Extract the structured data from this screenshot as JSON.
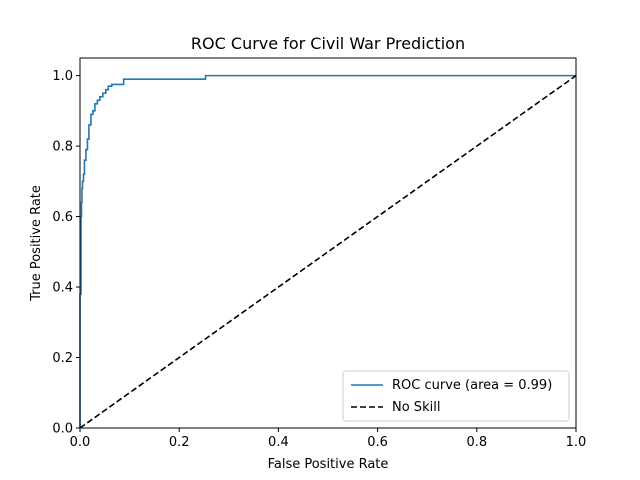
{
  "chart_data": {
    "type": "line",
    "title": "ROC Curve for Civil War Prediction",
    "xlabel": "False Positive Rate",
    "ylabel": "True Positive Rate",
    "xlim": [
      0.0,
      1.0
    ],
    "ylim": [
      0.0,
      1.05
    ],
    "x_ticks": [
      0.0,
      0.2,
      0.4,
      0.6,
      0.8,
      1.0
    ],
    "y_ticks": [
      0.0,
      0.2,
      0.4,
      0.6,
      0.8,
      1.0
    ],
    "x_tick_labels": [
      "0.0",
      "0.2",
      "0.4",
      "0.6",
      "0.8",
      "1.0"
    ],
    "y_tick_labels": [
      "0.0",
      "0.2",
      "0.4",
      "0.6",
      "0.8",
      "1.0"
    ],
    "grid": false,
    "legend_position": "lower-right",
    "series": [
      {
        "name": "ROC curve (area = 0.99)",
        "color": "#1f77b4",
        "style": "solid",
        "x": [
          0.0,
          0.0,
          0.002,
          0.002,
          0.003,
          0.003,
          0.004,
          0.004,
          0.005,
          0.005,
          0.007,
          0.007,
          0.009,
          0.009,
          0.012,
          0.012,
          0.015,
          0.015,
          0.018,
          0.018,
          0.022,
          0.022,
          0.026,
          0.026,
          0.03,
          0.03,
          0.035,
          0.035,
          0.04,
          0.04,
          0.046,
          0.046,
          0.052,
          0.052,
          0.057,
          0.057,
          0.064,
          0.064,
          0.088,
          0.088,
          0.253,
          0.253,
          1.0
        ],
        "y": [
          0.0,
          0.38,
          0.38,
          0.6,
          0.6,
          0.64,
          0.64,
          0.68,
          0.68,
          0.7,
          0.7,
          0.72,
          0.72,
          0.76,
          0.76,
          0.79,
          0.79,
          0.82,
          0.82,
          0.86,
          0.86,
          0.89,
          0.89,
          0.9,
          0.9,
          0.92,
          0.92,
          0.93,
          0.93,
          0.94,
          0.94,
          0.95,
          0.95,
          0.96,
          0.96,
          0.97,
          0.97,
          0.975,
          0.975,
          0.99,
          0.99,
          1.0,
          1.0
        ]
      },
      {
        "name": "No Skill",
        "color": "#000000",
        "style": "dashed",
        "x": [
          0.0,
          1.0
        ],
        "y": [
          0.0,
          1.0
        ]
      }
    ]
  }
}
